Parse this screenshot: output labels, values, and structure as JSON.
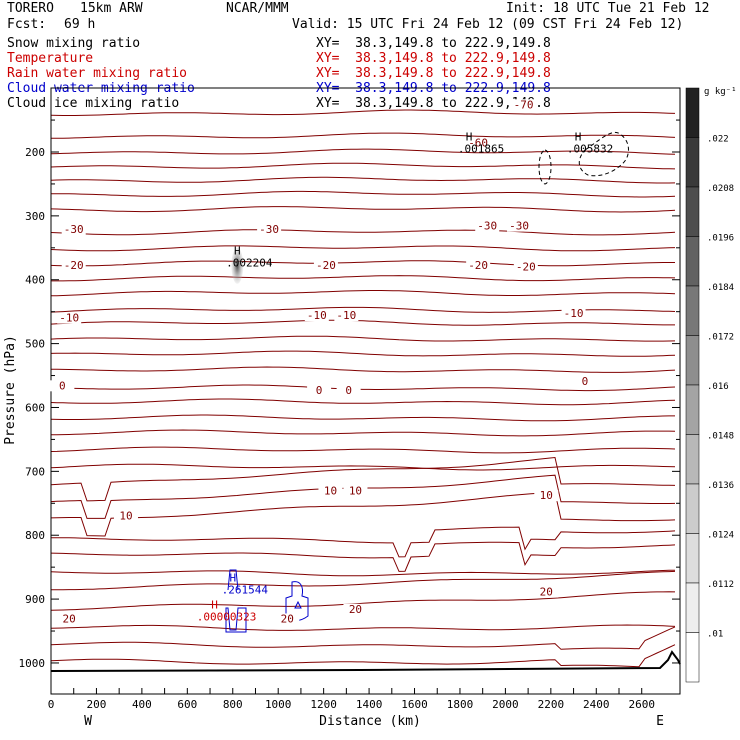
{
  "header": {
    "model": "TORERO",
    "run": "15km ARW",
    "org": "NCAR/MMM",
    "init": "Init: 18 UTC Tue 21 Feb 12",
    "fcst_label": "Fcst:",
    "fcst_value": "69 h",
    "valid": "Valid: 15 UTC Fri 24 Feb 12 (09 CST Fri 24 Feb 12)"
  },
  "fields": [
    {
      "label": "Snow mixing ratio",
      "color": "#000000",
      "xy": "XY=  38.3,149.8 to 222.9,149.8",
      "xy_color": "#000000"
    },
    {
      "label": "Temperature",
      "color": "#cc0000",
      "xy": "XY=  38.3,149.8 to 222.9,149.8",
      "xy_color": "#cc0000"
    },
    {
      "label": "Rain water mixing ratio",
      "color": "#cc0000",
      "xy": "XY=  38.3,149.8 to 222.9,149.8",
      "xy_color": "#cc0000"
    },
    {
      "label": "Cloud water mixing ratio",
      "color": "#0000cc",
      "xy": "XY=  38.3,149.8 to 222.9,149.8",
      "xy_color": "#0000cc"
    },
    {
      "label": "Cloud ice mixing ratio",
      "color": "#000000",
      "xy": "XY=  38.3,149.8 to 222.9,149.8",
      "xy_color": "#000000"
    }
  ],
  "chart_data": {
    "type": "cross-section contour",
    "xlabel": "Distance (km)",
    "ylabel": "Pressure (hPa)",
    "xlim": [
      0,
      2760
    ],
    "ylim": [
      1050,
      100
    ],
    "x_ticks": [
      0,
      100,
      200,
      300,
      400,
      500,
      600,
      700,
      800,
      900,
      1000,
      1100,
      1200,
      1300,
      1400,
      1500,
      1600,
      1700,
      1800,
      1900,
      2000,
      2100,
      2200,
      2300,
      2400,
      2500,
      2600
    ],
    "y_ticks": [
      200,
      300,
      400,
      500,
      600,
      700,
      800,
      900,
      1000
    ],
    "x_end_labels": {
      "left": "W",
      "right": "E"
    },
    "colorbar": {
      "unit": "g kg⁻¹",
      "labels": [
        ".022",
        ".0208",
        ".0196",
        ".0184",
        ".0172",
        ".016",
        ".0148",
        ".0136",
        ".0124",
        ".0112",
        ".01"
      ],
      "colors": [
        "#222222",
        "#3a3a3a",
        "#4e4e4e",
        "#626262",
        "#787878",
        "#8e8e8e",
        "#a4a4a4",
        "#b8b8b8",
        "#cccccc",
        "#dddddd",
        "#eeeeee",
        "#ffffff"
      ]
    },
    "temperature_labels": [
      {
        "text": "-70",
        "x": 2080,
        "p": 130
      },
      {
        "text": "-60",
        "x": 1880,
        "p": 190
      },
      {
        "text": "-30",
        "x": 100,
        "p": 325
      },
      {
        "text": "-30",
        "x": 960,
        "p": 325
      },
      {
        "text": "-30",
        "x": 1920,
        "p": 320
      },
      {
        "text": "-30",
        "x": 2060,
        "p": 320
      },
      {
        "text": "-20",
        "x": 100,
        "p": 382
      },
      {
        "text": "-20",
        "x": 1210,
        "p": 382
      },
      {
        "text": "-20",
        "x": 1880,
        "p": 382
      },
      {
        "text": "-20",
        "x": 2090,
        "p": 384
      },
      {
        "text": "-10",
        "x": 80,
        "p": 464
      },
      {
        "text": "-10",
        "x": 1170,
        "p": 460
      },
      {
        "text": "-10",
        "x": 1300,
        "p": 460
      },
      {
        "text": "-10",
        "x": 2300,
        "p": 457
      },
      {
        "text": "0",
        "x": 50,
        "p": 570
      },
      {
        "text": "0",
        "x": 1180,
        "p": 577
      },
      {
        "text": "0",
        "x": 1310,
        "p": 577
      },
      {
        "text": "0",
        "x": 2350,
        "p": 563
      },
      {
        "text": "10",
        "x": 1230,
        "p": 735
      },
      {
        "text": "10",
        "x": 1340,
        "p": 735
      },
      {
        "text": "10",
        "x": 2180,
        "p": 742
      },
      {
        "text": "10",
        "x": 330,
        "p": 774
      },
      {
        "text": "20",
        "x": 2180,
        "p": 893
      },
      {
        "text": "20",
        "x": 1340,
        "p": 920
      },
      {
        "text": "20",
        "x": 1040,
        "p": 935
      },
      {
        "text": "20",
        "x": 80,
        "p": 935
      }
    ],
    "maxima": [
      {
        "mark": "H",
        "value": ".002204",
        "x": 820,
        "p": 376,
        "color": "#000000"
      },
      {
        "mark": "H",
        "value": ".001865",
        "x": 1840,
        "p": 198,
        "color": "#000000"
      },
      {
        "mark": "H",
        "value": ".005832",
        "x": 2320,
        "p": 198,
        "color": "#000000"
      },
      {
        "mark": "H",
        "value": ".261544",
        "x": 800,
        "p": 888,
        "color": "#0000cc"
      },
      {
        "mark": "H",
        "value": ".00000323",
        "x": 720,
        "p": 930,
        "color": "#cc0000"
      }
    ]
  }
}
